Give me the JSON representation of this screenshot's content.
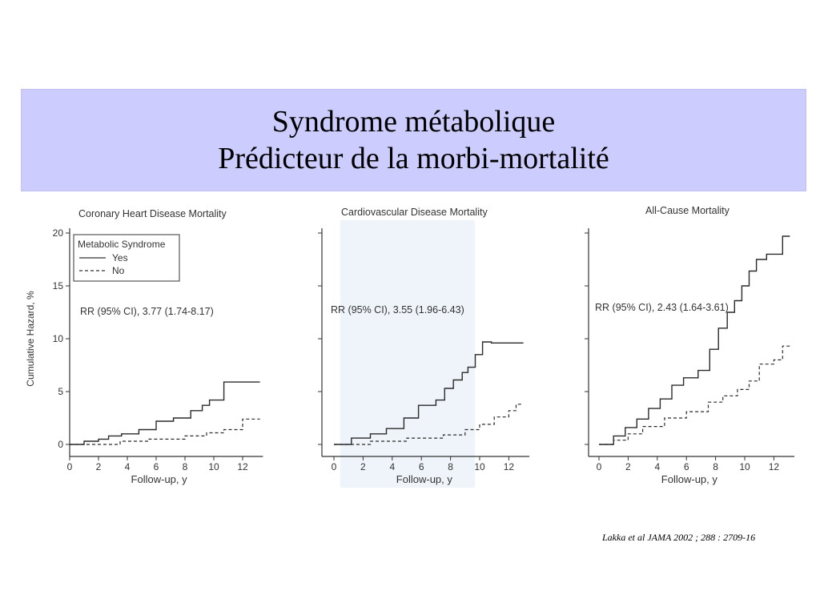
{
  "slide": {
    "title_line1": "Syndrome métabolique",
    "title_line2": "Prédicteur de la morbi-mortalité",
    "citation": "Lakka et al JAMA 2002 ; 288 : 2709-16",
    "band_color": "#ccccff"
  },
  "legend": {
    "title": "Metabolic Syndrome",
    "yes_label": "Yes",
    "no_label": "No"
  },
  "chart_data": [
    {
      "type": "line",
      "step": true,
      "title": "Coronary Heart Disease Mortality",
      "xlabel": "Follow-up, y",
      "ylabel": "Cumulative Hazard, %",
      "xlim": [
        0,
        13.3
      ],
      "ylim": [
        0,
        20
      ],
      "xticks": [
        0,
        2,
        4,
        6,
        8,
        10,
        12
      ],
      "yticks": [
        0,
        5,
        10,
        15,
        20
      ],
      "annotation": "RR (95% CI), 3.77 (1.74-8.17)",
      "legend": "top-left",
      "series": [
        {
          "name": "Yes",
          "dash": false,
          "x": [
            0,
            1,
            2,
            2.7,
            3.6,
            4.8,
            6.0,
            7.2,
            8.4,
            9.2,
            9.7,
            10.7,
            13.2
          ],
          "y": [
            0,
            0.3,
            0.5,
            0.8,
            1.0,
            1.4,
            2.2,
            2.5,
            3.2,
            3.7,
            4.2,
            5.9,
            5.9
          ]
        },
        {
          "name": "No",
          "dash": true,
          "x": [
            0,
            3.5,
            5.5,
            8.0,
            9.5,
            10.7,
            12.0,
            13.2
          ],
          "y": [
            0,
            0.3,
            0.5,
            0.8,
            1.1,
            1.4,
            2.4,
            2.4
          ]
        }
      ]
    },
    {
      "type": "line",
      "step": true,
      "title": "Cardiovascular Disease Mortality",
      "xlabel": "Follow-up, y",
      "ylabel": "",
      "xlim": [
        0,
        13.3
      ],
      "ylim": [
        0,
        20
      ],
      "xticks": [
        0,
        2,
        4,
        6,
        8,
        10,
        12
      ],
      "yticks": [
        0,
        5,
        10,
        15,
        20
      ],
      "annotation": "RR (95% CI), 3.55 (1.96-6.43)",
      "series": [
        {
          "name": "Yes",
          "dash": false,
          "x": [
            0,
            1.2,
            2.5,
            3.6,
            4.8,
            5.8,
            7.0,
            7.6,
            8.2,
            8.8,
            9.2,
            9.7,
            10.2,
            10.8,
            13.0
          ],
          "y": [
            0,
            0.6,
            1.0,
            1.5,
            2.5,
            3.7,
            4.2,
            5.3,
            6.1,
            6.8,
            7.3,
            8.5,
            9.7,
            9.6,
            9.6
          ]
        },
        {
          "name": "No",
          "dash": true,
          "x": [
            0,
            2.5,
            5.0,
            7.5,
            9.0,
            10.0,
            11.0,
            12.0,
            12.5,
            13.0
          ],
          "y": [
            0,
            0.3,
            0.6,
            0.9,
            1.4,
            1.9,
            2.6,
            3.2,
            3.8,
            3.8
          ]
        }
      ]
    },
    {
      "type": "line",
      "step": true,
      "title": "All-Cause Mortality",
      "xlabel": "Follow-up, y",
      "ylabel": "",
      "xlim": [
        0,
        13.3
      ],
      "ylim": [
        0,
        20
      ],
      "xticks": [
        0,
        2,
        4,
        6,
        8,
        10,
        12
      ],
      "yticks": [
        0,
        5,
        10,
        15,
        20
      ],
      "annotation": "RR (95% CI), 2.43 (1.64-3.61)",
      "series": [
        {
          "name": "Yes",
          "dash": false,
          "x": [
            0,
            1.0,
            1.8,
            2.6,
            3.4,
            4.2,
            5.0,
            5.8,
            6.8,
            7.6,
            8.2,
            8.8,
            9.3,
            9.8,
            10.3,
            10.8,
            11.5,
            12.6,
            13.1
          ],
          "y": [
            0,
            0.8,
            1.6,
            2.4,
            3.4,
            4.3,
            5.6,
            6.3,
            7.0,
            9.0,
            11.0,
            12.5,
            13.6,
            15.0,
            16.4,
            17.5,
            18.0,
            19.7,
            19.7
          ]
        },
        {
          "name": "No",
          "dash": true,
          "x": [
            0,
            1.0,
            2.0,
            3.0,
            4.5,
            6.0,
            7.5,
            8.5,
            9.5,
            10.3,
            11.0,
            12.0,
            12.6,
            13.1
          ],
          "y": [
            0,
            0.4,
            1.0,
            1.7,
            2.5,
            3.1,
            4.0,
            4.6,
            5.2,
            6.0,
            7.6,
            8.0,
            9.3,
            9.3
          ]
        }
      ]
    }
  ]
}
